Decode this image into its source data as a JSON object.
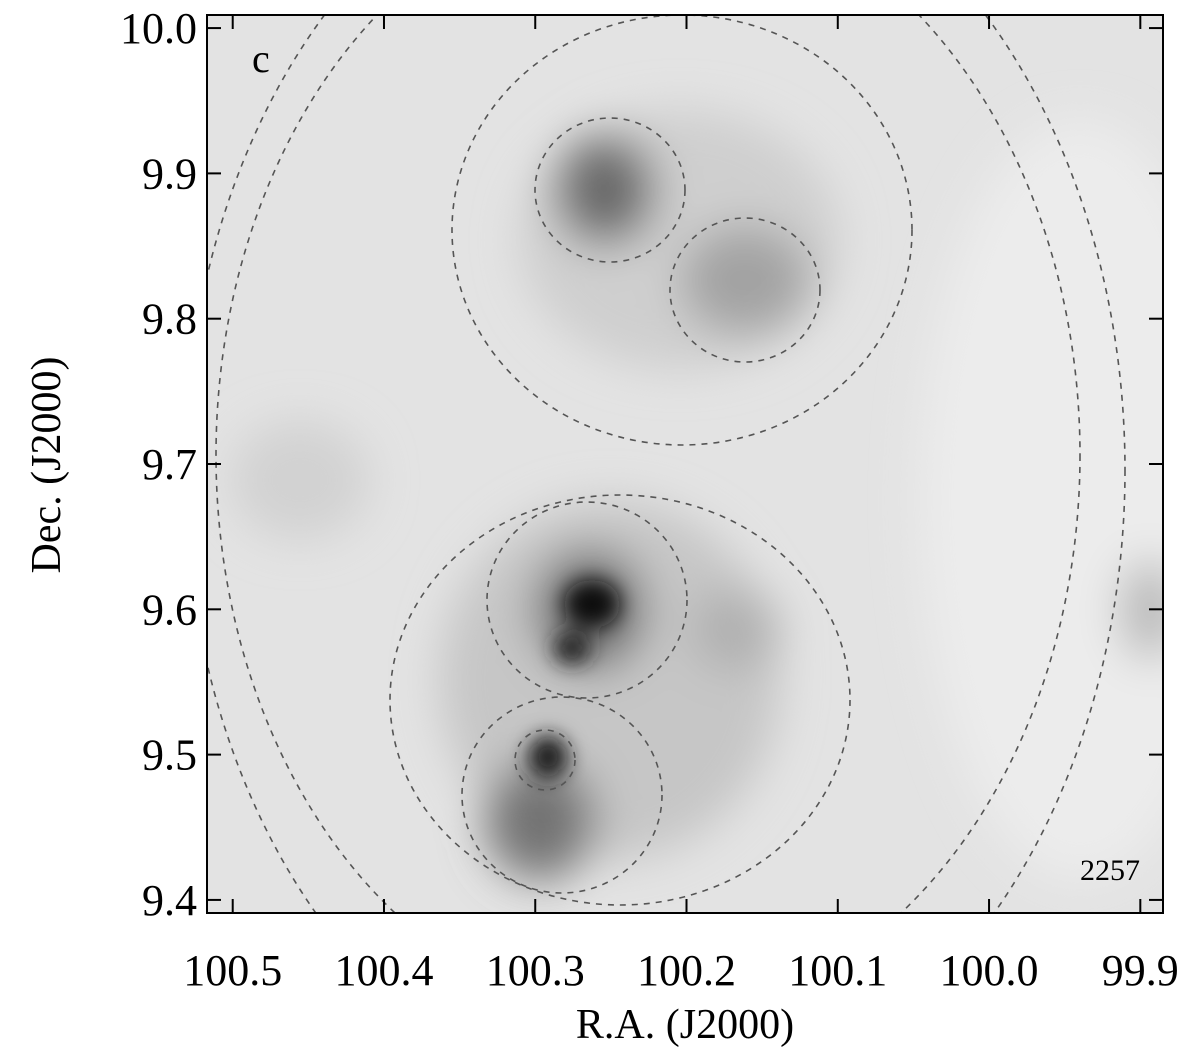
{
  "chart_data": {
    "type": "image",
    "panel_label": "c",
    "annotation": "2257",
    "x_label": "R.A. (J2000)",
    "y_label": "Dec. (J2000)",
    "xlim": [
      100.517,
      99.885
    ],
    "ylim": [
      9.391,
      10.009
    ],
    "xticks": [
      100.5,
      100.4,
      100.3,
      100.2,
      100.1,
      {
        "value": 100,
        "label": "100.0"
      },
      99.9
    ],
    "yticks": [
      9.4,
      9.5,
      9.6,
      9.7,
      9.8,
      9.9,
      {
        "value": 10,
        "label": "10.0"
      }
    ]
  }
}
